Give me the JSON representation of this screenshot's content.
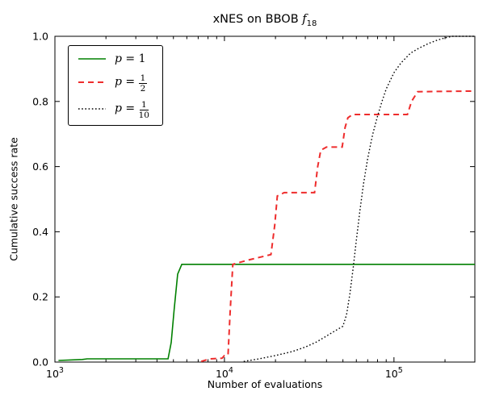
{
  "figure": {
    "title": {
      "prefix": "xNES on BBOB ",
      "math_var": "f",
      "sub": "18"
    },
    "xlabel": "Number of evaluations",
    "ylabel": "Cumulative success rate"
  },
  "chart_data": {
    "type": "line",
    "title": "xNES on BBOB f_18",
    "xlabel": "Number of evaluations",
    "ylabel": "Cumulative success rate",
    "xscale": "log",
    "xlim": [
      1000,
      300000
    ],
    "ylim": [
      0.0,
      1.0
    ],
    "grid": false,
    "legend_position": "upper left",
    "yticks": [
      {
        "value": 0.0,
        "label": "0.0"
      },
      {
        "value": 0.2,
        "label": "0.2"
      },
      {
        "value": 0.4,
        "label": "0.4"
      },
      {
        "value": 0.6,
        "label": "0.6"
      },
      {
        "value": 0.8,
        "label": "0.8"
      },
      {
        "value": 1.0,
        "label": "1.0"
      }
    ],
    "xticks_major": [
      {
        "value": 1000,
        "base": "10",
        "exp": "3"
      },
      {
        "value": 10000,
        "base": "10",
        "exp": "4"
      },
      {
        "value": 100000,
        "base": "10",
        "exp": "5"
      }
    ],
    "xticks_minor": [
      2000,
      3000,
      4000,
      5000,
      6000,
      7000,
      8000,
      9000,
      20000,
      30000,
      40000,
      50000,
      60000,
      70000,
      80000,
      90000,
      200000,
      300000
    ],
    "series": [
      {
        "name": "p=1",
        "color": "#008000",
        "style": "solid",
        "width": 1.6,
        "points": [
          [
            1050,
            0.005
          ],
          [
            1450,
            0.008
          ],
          [
            1550,
            0.01
          ],
          [
            4650,
            0.01
          ],
          [
            4850,
            0.06
          ],
          [
            5050,
            0.16
          ],
          [
            5300,
            0.27
          ],
          [
            5600,
            0.3
          ],
          [
            300000,
            0.3
          ]
        ]
      },
      {
        "name": "p=1/2",
        "color": "#ee2c2c",
        "style": "dashed",
        "width": 2.0,
        "points": [
          [
            7300,
            0.002
          ],
          [
            8200,
            0.01
          ],
          [
            9700,
            0.012
          ],
          [
            10000,
            0.02
          ],
          [
            10500,
            0.022
          ],
          [
            10800,
            0.15
          ],
          [
            11200,
            0.3
          ],
          [
            13500,
            0.312
          ],
          [
            18800,
            0.33
          ],
          [
            19800,
            0.42
          ],
          [
            20500,
            0.51
          ],
          [
            22500,
            0.52
          ],
          [
            34000,
            0.52
          ],
          [
            35500,
            0.6
          ],
          [
            37000,
            0.65
          ],
          [
            40000,
            0.66
          ],
          [
            49500,
            0.66
          ],
          [
            51500,
            0.72
          ],
          [
            53500,
            0.75
          ],
          [
            57000,
            0.76
          ],
          [
            120000,
            0.76
          ],
          [
            127000,
            0.8
          ],
          [
            138000,
            0.83
          ],
          [
            300000,
            0.832
          ]
        ]
      },
      {
        "name": "p=1/10",
        "color": "#000000",
        "style": "dotted",
        "width": 1.4,
        "points": [
          [
            13000,
            0.002
          ],
          [
            16000,
            0.01
          ],
          [
            20000,
            0.02
          ],
          [
            25000,
            0.032
          ],
          [
            30000,
            0.046
          ],
          [
            35000,
            0.062
          ],
          [
            40000,
            0.08
          ],
          [
            45000,
            0.096
          ],
          [
            50000,
            0.11
          ],
          [
            52500,
            0.145
          ],
          [
            55000,
            0.21
          ],
          [
            57500,
            0.29
          ],
          [
            60000,
            0.375
          ],
          [
            63000,
            0.465
          ],
          [
            66000,
            0.545
          ],
          [
            70000,
            0.625
          ],
          [
            75000,
            0.7
          ],
          [
            80000,
            0.755
          ],
          [
            85000,
            0.8
          ],
          [
            90000,
            0.838
          ],
          [
            100000,
            0.888
          ],
          [
            110000,
            0.918
          ],
          [
            125000,
            0.948
          ],
          [
            140000,
            0.963
          ],
          [
            160000,
            0.978
          ],
          [
            180000,
            0.988
          ],
          [
            200000,
            0.995
          ],
          [
            220000,
            1.0
          ],
          [
            300000,
            1.0
          ]
        ]
      }
    ],
    "legend": [
      {
        "var": "p",
        "eq": "=",
        "value": "1",
        "frac": null,
        "series": 0
      },
      {
        "var": "p",
        "eq": "=",
        "value": null,
        "frac": {
          "num": "1",
          "den": "2"
        },
        "series": 1
      },
      {
        "var": "p",
        "eq": "=",
        "value": null,
        "frac": {
          "num": "1",
          "den": "10"
        },
        "series": 2
      }
    ]
  }
}
